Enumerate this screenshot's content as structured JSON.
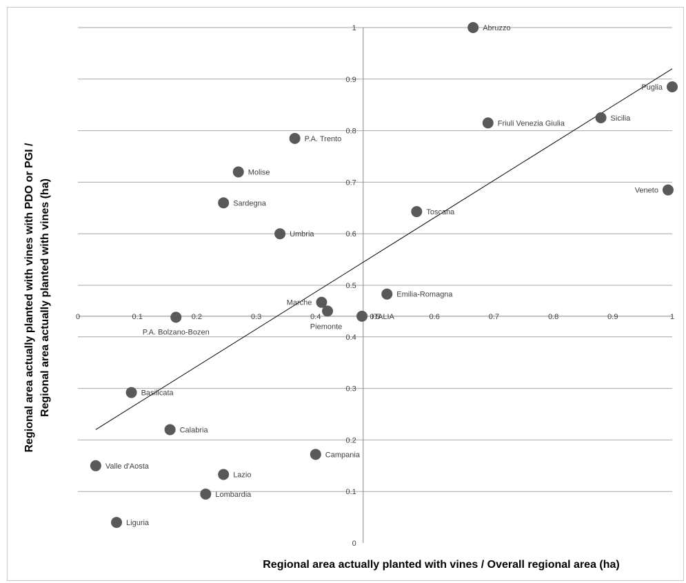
{
  "chart_data": {
    "type": "scatter",
    "title": "",
    "xlabel": "Regional area actually planted with vines / Overall regional area (ha)",
    "ylabel_lines": [
      "Regional area actually planted with vines with PDO or PGI /",
      "Regional area actually planted with vines (ha)"
    ],
    "xlim": [
      0,
      1
    ],
    "ylim": [
      0,
      1
    ],
    "x_ticks": [
      {
        "value": 0,
        "label": "0"
      },
      {
        "value": 0.1,
        "label": "0.1"
      },
      {
        "value": 0.2,
        "label": "0.2"
      },
      {
        "value": 0.3,
        "label": "0.3"
      },
      {
        "value": 0.4,
        "label": "0.4"
      },
      {
        "value": 0.5,
        "label": "0.5"
      },
      {
        "value": 0.6,
        "label": "0.6"
      },
      {
        "value": 0.7,
        "label": "0.7"
      },
      {
        "value": 0.8,
        "label": "0.8"
      },
      {
        "value": 0.9,
        "label": "0.9"
      },
      {
        "value": 1,
        "label": "1"
      }
    ],
    "y_ticks": [
      {
        "value": 0,
        "label": "0"
      },
      {
        "value": 0.1,
        "label": "0.1"
      },
      {
        "value": 0.2,
        "label": "0.2"
      },
      {
        "value": 0.3,
        "label": "0.3"
      },
      {
        "value": 0.4,
        "label": "0.4"
      },
      {
        "value": 0.5,
        "label": "0.5"
      },
      {
        "value": 0.6,
        "label": "0.6"
      },
      {
        "value": 0.7,
        "label": "0.7"
      },
      {
        "value": 0.8,
        "label": "0.8"
      },
      {
        "value": 0.9,
        "label": "0.9"
      },
      {
        "value": 1,
        "label": "1"
      }
    ],
    "x_axis_crosses_y_at": 0.44,
    "y_axis_crosses_x_at": 0.48,
    "horizontal_gridlines": true,
    "vertical_gridlines": false,
    "legend": "none",
    "marker_color": "#595959",
    "trendline_color": "#000000",
    "trendline": {
      "x": [
        0.03,
        1.0
      ],
      "y": [
        0.22,
        0.92
      ]
    },
    "points": [
      {
        "label": "Abruzzo",
        "x": 0.665,
        "y": 1.0,
        "label_side": "right"
      },
      {
        "label": "Puglia",
        "x": 1.0,
        "y": 0.885,
        "label_side": "left"
      },
      {
        "label": "Friuli Venezia Giulia",
        "x": 0.69,
        "y": 0.815,
        "label_side": "right"
      },
      {
        "label": "Sicilia",
        "x": 0.88,
        "y": 0.825,
        "label_side": "right"
      },
      {
        "label": "P.A. Trento",
        "x": 0.365,
        "y": 0.785,
        "label_side": "right"
      },
      {
        "label": "Molise",
        "x": 0.27,
        "y": 0.72,
        "label_side": "right"
      },
      {
        "label": "Veneto",
        "x": 0.993,
        "y": 0.685,
        "label_side": "left"
      },
      {
        "label": "Sardegna",
        "x": 0.245,
        "y": 0.66,
        "label_side": "right"
      },
      {
        "label": "Toscana",
        "x": 0.57,
        "y": 0.643,
        "label_side": "right"
      },
      {
        "label": "Umbria",
        "x": 0.34,
        "y": 0.6,
        "label_side": "right"
      },
      {
        "label": "Emilia-Romagna",
        "x": 0.52,
        "y": 0.483,
        "label_side": "right"
      },
      {
        "label": "Marche",
        "x": 0.41,
        "y": 0.467,
        "label_side": "left"
      },
      {
        "label": "Piemonte",
        "x": 0.42,
        "y": 0.45,
        "label_side": "below-left"
      },
      {
        "label": "ITALIA",
        "x": 0.478,
        "y": 0.44,
        "label_side": "right"
      },
      {
        "label": "P.A. Bolzano-Bozen",
        "x": 0.165,
        "y": 0.438,
        "label_side": "below-left"
      },
      {
        "label": "Basilicata",
        "x": 0.09,
        "y": 0.292,
        "label_side": "right"
      },
      {
        "label": "Calabria",
        "x": 0.155,
        "y": 0.22,
        "label_side": "right"
      },
      {
        "label": "Campania",
        "x": 0.4,
        "y": 0.172,
        "label_side": "right"
      },
      {
        "label": "Valle d'Aosta",
        "x": 0.03,
        "y": 0.15,
        "label_side": "right"
      },
      {
        "label": "Lazio",
        "x": 0.245,
        "y": 0.133,
        "label_side": "right"
      },
      {
        "label": "Lombardia",
        "x": 0.215,
        "y": 0.095,
        "label_side": "right"
      },
      {
        "label": "Liguria",
        "x": 0.065,
        "y": 0.04,
        "label_side": "right"
      }
    ]
  }
}
